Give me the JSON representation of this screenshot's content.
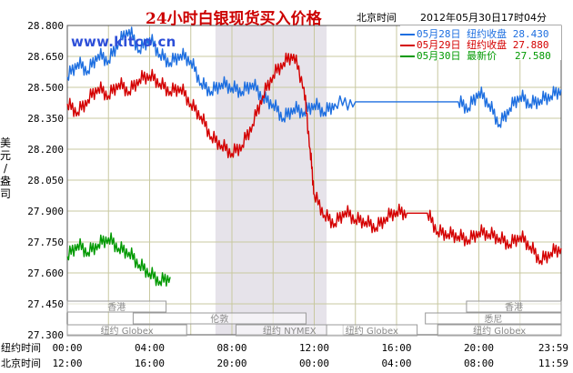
{
  "title": "24小时白银现货买入价格",
  "subtitle_tz": "北京时间",
  "subtitle_time": "2012年05月30日17时04分",
  "brand": "www.kitco.cn",
  "colors": {
    "day28": "#1e6fe0",
    "day29": "#d40000",
    "day30": "#009900",
    "grid": "#c8c8a0",
    "shade": "#e6e3ea"
  },
  "legend": [
    {
      "label": "05月28日",
      "kind": "纽约收盘",
      "value": "28.430",
      "color": "#1e6fe0"
    },
    {
      "label": "05月29日",
      "kind": "纽约收盘",
      "value": "27.880",
      "color": "#d40000"
    },
    {
      "label": "05月30日",
      "kind": "最新价",
      "value": "27.580",
      "color": "#009900"
    }
  ],
  "chart_data": {
    "type": "line",
    "ylabel": "美元/盎司",
    "ylim": [
      27.3,
      28.8
    ],
    "yticks": [
      "28.800",
      "28.650",
      "28.500",
      "28.350",
      "28.200",
      "28.050",
      "27.900",
      "27.750",
      "27.600",
      "27.450",
      "27.300"
    ],
    "xlim": [
      0,
      24
    ],
    "xrow1_label": "纽约时间",
    "xrow1": [
      "00:00",
      "04:00",
      "08:00",
      "12:00",
      "16:00",
      "20:00",
      "23:59"
    ],
    "xrow2_label": "北京时间",
    "xrow2": [
      "12:00",
      "16:00",
      "20:00",
      "00:00",
      "04:00",
      "08:00",
      "11:59"
    ],
    "shaded_region": [
      7.2,
      12.6
    ],
    "markets": [
      {
        "name": "香港",
        "row": 0,
        "start": 0,
        "end": 4.8
      },
      {
        "name": "香港",
        "row": 0,
        "start": 19.4,
        "end": 24
      },
      {
        "name": "伦敦",
        "row": 1,
        "start": 3.2,
        "end": 11.6
      },
      {
        "name": "悉尼",
        "row": 1,
        "start": 17.4,
        "end": 24
      },
      {
        "name": "纽约 Globex",
        "row": 2,
        "start": 0,
        "end": 5.8
      },
      {
        "name": "纽约 NYMEX",
        "row": 2,
        "start": 8.2,
        "end": 13.4
      },
      {
        "name": "纽约 Globex",
        "row": 2,
        "start": 12.6,
        "end": 17.0
      },
      {
        "name": "纽约 Globex",
        "row": 2,
        "start": 18.0,
        "end": 24
      }
    ],
    "series": [
      {
        "name": "05月28日",
        "color": "#1e6fe0",
        "x": [
          0,
          0.5,
          1,
          1.5,
          2,
          2.5,
          3,
          3.5,
          4,
          4.5,
          5,
          5.5,
          6,
          6.5,
          7,
          7.5,
          8,
          8.5,
          9,
          9.5,
          10,
          10.5,
          11,
          11.5,
          12,
          12.5,
          13,
          14,
          15,
          16,
          17,
          18,
          19,
          19.5,
          20,
          20.5,
          21,
          21.5,
          22,
          22.5,
          23,
          23.5,
          24
        ],
        "y": [
          28.55,
          28.62,
          28.58,
          28.66,
          28.63,
          28.72,
          28.78,
          28.68,
          28.74,
          28.66,
          28.62,
          28.66,
          28.63,
          28.52,
          28.48,
          28.52,
          28.5,
          28.48,
          28.52,
          28.45,
          28.42,
          28.35,
          28.4,
          28.38,
          28.42,
          28.38,
          28.42,
          28.43,
          28.43,
          28.43,
          28.43,
          28.43,
          28.43,
          28.4,
          28.48,
          28.42,
          28.32,
          28.4,
          28.46,
          28.42,
          28.44,
          28.46,
          28.49
        ]
      },
      {
        "name": "05月29日",
        "color": "#d40000",
        "x": [
          0,
          0.5,
          1,
          1.5,
          2,
          2.5,
          3,
          3.5,
          4,
          4.5,
          5,
          5.5,
          6,
          6.5,
          7,
          7.5,
          8,
          8.5,
          9,
          9.5,
          10,
          10.5,
          11,
          11.5,
          11.8,
          12,
          12.5,
          13,
          13.5,
          14,
          14.5,
          15,
          15.5,
          16,
          16.5,
          17,
          17.5,
          18,
          18.5,
          19,
          19.5,
          20,
          20.5,
          21,
          21.5,
          22,
          22.5,
          23,
          23.5,
          24
        ],
        "y": [
          28.42,
          28.38,
          28.44,
          28.5,
          28.46,
          28.52,
          28.48,
          28.54,
          28.56,
          28.52,
          28.48,
          28.5,
          28.42,
          28.36,
          28.26,
          28.22,
          28.18,
          28.22,
          28.32,
          28.46,
          28.56,
          28.62,
          28.66,
          28.5,
          28.2,
          27.98,
          27.88,
          27.84,
          27.9,
          27.86,
          27.85,
          27.82,
          27.87,
          27.9,
          27.89,
          27.89,
          27.89,
          27.8,
          27.79,
          27.78,
          27.76,
          27.8,
          27.79,
          27.77,
          27.74,
          27.78,
          27.73,
          27.66,
          27.7,
          27.72
        ]
      },
      {
        "name": "05月30日",
        "color": "#009900",
        "x": [
          0,
          0.5,
          1,
          1.5,
          2,
          2.5,
          3,
          3.5,
          4,
          4.5,
          5
        ],
        "y": [
          27.68,
          27.74,
          27.7,
          27.74,
          27.77,
          27.72,
          27.7,
          27.64,
          27.6,
          27.56,
          27.58
        ]
      }
    ]
  }
}
